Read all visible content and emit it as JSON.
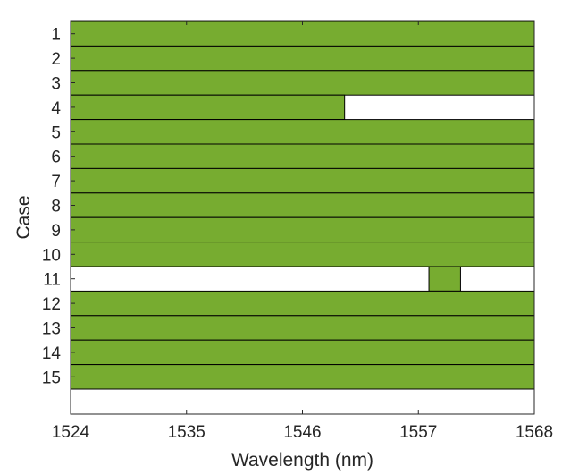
{
  "chart_data": {
    "type": "bar",
    "orientation": "horizontal-range",
    "xlabel": "Wavelength (nm)",
    "ylabel": "Case",
    "xlim": [
      1524,
      1568
    ],
    "xticks": [
      "1524",
      "1535",
      "1546",
      "1557",
      "1568"
    ],
    "categories": [
      "1",
      "2",
      "3",
      "4",
      "5",
      "6",
      "7",
      "8",
      "9",
      "10",
      "11",
      "12",
      "13",
      "14",
      "15"
    ],
    "ranges": [
      [
        1524,
        1568
      ],
      [
        1524,
        1568
      ],
      [
        1524,
        1568
      ],
      [
        1524,
        1550
      ],
      [
        1524,
        1568
      ],
      [
        1524,
        1568
      ],
      [
        1524,
        1568
      ],
      [
        1524,
        1568
      ],
      [
        1524,
        1568
      ],
      [
        1524,
        1568
      ],
      [
        1558,
        1561
      ],
      [
        1524,
        1568
      ],
      [
        1524,
        1568
      ],
      [
        1524,
        1568
      ],
      [
        1524,
        1568
      ]
    ],
    "colors": {
      "bar_fill": "#77ac30",
      "bar_stroke": "#000000",
      "axis": "#262626"
    },
    "grid": false,
    "legend": "none"
  }
}
